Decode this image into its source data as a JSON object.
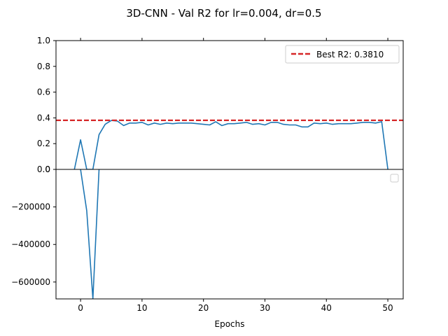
{
  "chart_data": {
    "title": "3D-CNN - Val R2 for lr=0.004, dr=0.5",
    "xlabel": "Epochs",
    "x_ticks": [
      0,
      10,
      20,
      30,
      40,
      50
    ],
    "xlim": [
      -4,
      52.5
    ],
    "panels": [
      {
        "type": "line",
        "ylim": [
          0,
          1.0
        ],
        "y_ticks": [
          "0.0",
          "0.2",
          "0.4",
          "0.6",
          "0.8",
          "1.0"
        ],
        "y_tick_values": [
          0,
          0.2,
          0.4,
          0.6,
          0.8,
          1.0
        ],
        "series": [
          {
            "color": "#1f77b4",
            "x": [
              -1,
              0,
              1,
              2,
              3,
              4,
              5,
              6,
              7,
              8,
              9,
              10,
              11,
              12,
              13,
              14,
              15,
              16,
              17,
              18,
              19,
              20,
              21,
              22,
              23,
              24,
              25,
              26,
              27,
              28,
              29,
              30,
              31,
              32,
              33,
              34,
              35,
              36,
              37,
              38,
              39,
              40,
              41,
              42,
              43,
              44,
              45,
              46,
              47,
              48,
              49,
              50
            ],
            "values": [
              0.0,
              0.23,
              0.0,
              0.0,
              0.27,
              0.35,
              0.38,
              0.375,
              0.34,
              0.36,
              0.36,
              0.365,
              0.345,
              0.36,
              0.35,
              0.36,
              0.355,
              0.36,
              0.36,
              0.36,
              0.355,
              0.35,
              0.345,
              0.37,
              0.34,
              0.355,
              0.355,
              0.36,
              0.365,
              0.35,
              0.355,
              0.345,
              0.365,
              0.365,
              0.35,
              0.345,
              0.345,
              0.33,
              0.33,
              0.36,
              0.355,
              0.36,
              0.35,
              0.355,
              0.355,
              0.355,
              0.36,
              0.365,
              0.365,
              0.36,
              0.37,
              0.0
            ]
          }
        ],
        "hline": {
          "y": 0.381,
          "color": "#d62728",
          "style": "dashed",
          "label": "Best R2: 0.3810"
        },
        "legend": {
          "placement": "top-right",
          "entries": [
            "Best R2: 0.3810"
          ]
        }
      },
      {
        "type": "line",
        "ylim": [
          -690000,
          0
        ],
        "y_ticks": [
          "0",
          "−200000",
          "−400000",
          "−600000"
        ],
        "y_tick_values": [
          0,
          -200000,
          -400000,
          -600000
        ],
        "series": [
          {
            "color": "#1f77b4",
            "x": [
              0,
              1,
              2,
              3
            ],
            "values": [
              0,
              -220000,
              -690000,
              0
            ]
          }
        ],
        "legend": {
          "placement": "top-right",
          "entries": []
        }
      }
    ]
  }
}
